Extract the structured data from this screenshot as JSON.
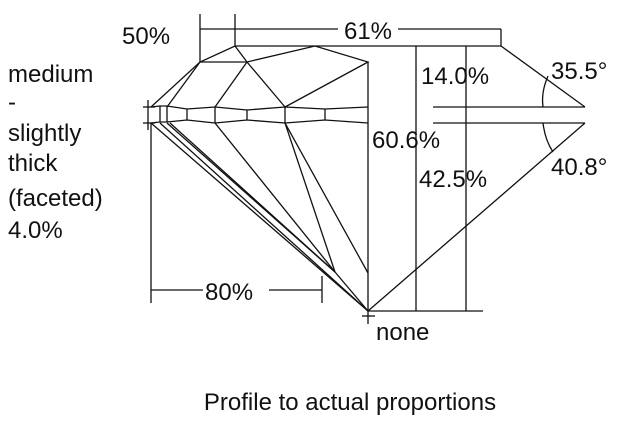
{
  "diagram": {
    "caption": "Profile to actual proportions",
    "labels": {
      "lower_half_length": "50%",
      "table": "61%",
      "crown_height": "14.0%",
      "crown_angle": "35.5°",
      "total_depth": "60.6%",
      "pavilion_depth": "42.5%",
      "pavilion_angle": "40.8°",
      "lower_girdle": "80%",
      "culet": "none"
    },
    "girdle": {
      "lines": [
        "medium",
        "-",
        "slightly",
        "thick",
        "(faceted)",
        "4.0%"
      ]
    },
    "line_color": "#111111"
  }
}
